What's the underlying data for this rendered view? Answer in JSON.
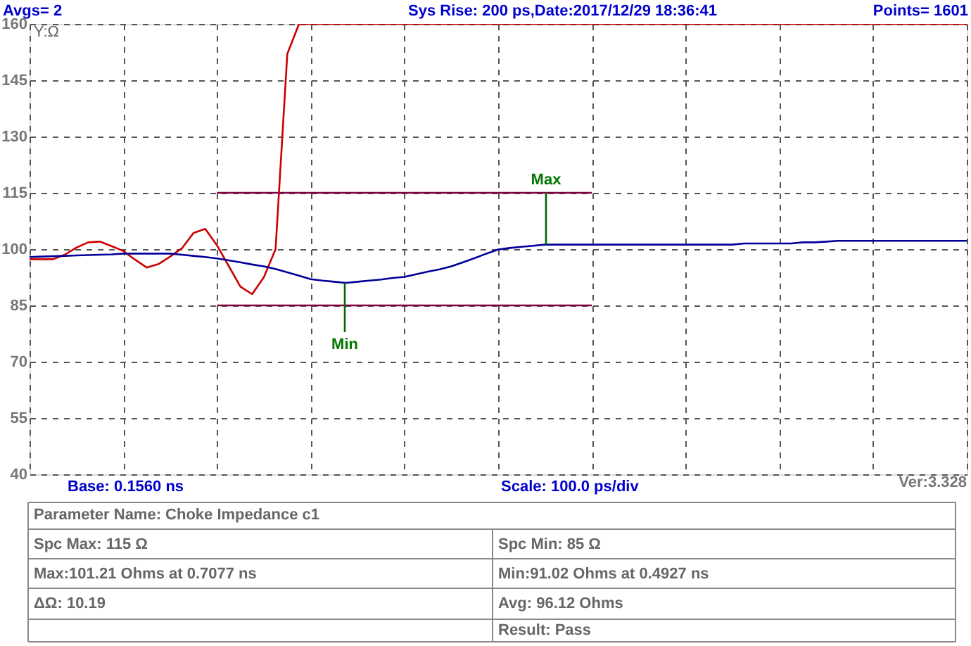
{
  "chart_data": {
    "type": "line",
    "ylabel": "Y:Ω",
    "categories": [
      null,
      null,
      null,
      null,
      null,
      null,
      null,
      null,
      null,
      null,
      null,
      null,
      null,
      null,
      null,
      null,
      null,
      null,
      null,
      null,
      null,
      null,
      null,
      null,
      null,
      null,
      null,
      null,
      null,
      null,
      null,
      null,
      null,
      null,
      null,
      null,
      null,
      null,
      null,
      null,
      null,
      null,
      null,
      null,
      null,
      null,
      null,
      null,
      null,
      null,
      null,
      null,
      null,
      null,
      null,
      null,
      null,
      null,
      null,
      null,
      null,
      null,
      null,
      null,
      null,
      null,
      null,
      null,
      null,
      null,
      null,
      null,
      null,
      null,
      null,
      null,
      null,
      null,
      null,
      null,
      null
    ],
    "ylim": [
      40,
      160
    ],
    "yticks": [
      40,
      55,
      70,
      85,
      100,
      115,
      130,
      145,
      160
    ],
    "grid": true,
    "line_style": "solid",
    "marker": "none",
    "series": [
      {
        "color": "#cc0000",
        "values": [
          97.3,
          97.3,
          97.3,
          98.5,
          100.4,
          101.8,
          102.0,
          100.8,
          99.5,
          97.2,
          95.1,
          96.0,
          98.0,
          100.2,
          104.3,
          105.4,
          101.0,
          95.5,
          90.0,
          88.0,
          92.5,
          100.0,
          152,
          160,
          160,
          160,
          160,
          160,
          160,
          160,
          160,
          160,
          160,
          160,
          160,
          160,
          160,
          160,
          160,
          160,
          160,
          160,
          160,
          160,
          160,
          160,
          160,
          160,
          160,
          160,
          160,
          160,
          160,
          160,
          160,
          160,
          160,
          160,
          160,
          160,
          160,
          160,
          160,
          160,
          160,
          160,
          160,
          160,
          160,
          160,
          160,
          160,
          160,
          160,
          160,
          160,
          160,
          160,
          160,
          160,
          160
        ]
      },
      {
        "color": "#000099",
        "values": [
          97.9,
          98.0,
          98.1,
          98.2,
          98.3,
          98.4,
          98.5,
          98.6,
          98.8,
          98.8,
          98.8,
          98.8,
          98.8,
          98.5,
          98.2,
          97.9,
          97.5,
          97.0,
          96.5,
          95.9,
          95.4,
          94.7,
          93.8,
          92.9,
          92.0,
          91.6,
          91.3,
          91.0,
          91.3,
          91.6,
          91.9,
          92.3,
          92.6,
          93.3,
          94.0,
          94.6,
          95.4,
          96.5,
          97.6,
          98.8,
          99.9,
          100.3,
          100.6,
          100.9,
          101.2,
          101.2,
          101.2,
          101.2,
          101.2,
          101.2,
          101.2,
          101.2,
          101.2,
          101.2,
          101.2,
          101.2,
          101.2,
          101.2,
          101.2,
          101.2,
          101.2,
          101.5,
          101.5,
          101.5,
          101.5,
          101.5,
          101.8,
          101.8,
          102.0,
          102.2,
          102.2,
          102.2,
          102.2,
          102.2,
          102.2,
          102.2,
          102.2,
          102.2,
          102.2,
          102.2,
          102.2
        ]
      },
      {
        "color": "#800040",
        "values": [
          null,
          null,
          null,
          null,
          null,
          null,
          null,
          null,
          null,
          null,
          null,
          null,
          null,
          null,
          null,
          null,
          115,
          115,
          115,
          115,
          115,
          115,
          115,
          115,
          115,
          115,
          115,
          115,
          115,
          115,
          115,
          115,
          115,
          115,
          115,
          115,
          115,
          115,
          115,
          115,
          115,
          115,
          115,
          115,
          115,
          115,
          115,
          115,
          115,
          null,
          null,
          null,
          null,
          null,
          null,
          null,
          null,
          null,
          null,
          null,
          null,
          null,
          null,
          null,
          null,
          null,
          null,
          null,
          null,
          null,
          null,
          null,
          null,
          null,
          null,
          null,
          null,
          null,
          null,
          null,
          null
        ]
      },
      {
        "color": "#800040",
        "values": [
          null,
          null,
          null,
          null,
          null,
          null,
          null,
          null,
          null,
          null,
          null,
          null,
          null,
          null,
          null,
          null,
          85,
          85,
          85,
          85,
          85,
          85,
          85,
          85,
          85,
          85,
          85,
          85,
          85,
          85,
          85,
          85,
          85,
          85,
          85,
          85,
          85,
          85,
          85,
          85,
          85,
          85,
          85,
          85,
          85,
          85,
          85,
          85,
          85,
          null,
          null,
          null,
          null,
          null,
          null,
          null,
          null,
          null,
          null,
          null,
          null,
          null,
          null,
          null,
          null,
          null,
          null,
          null,
          null,
          null,
          null,
          null,
          null,
          null,
          null,
          null,
          null,
          null,
          null,
          null,
          null
        ]
      }
    ],
    "annotations": [
      "Avgs= 2",
      "Sys Rise: 200 ps,Date:2017/12/29 18:36:41",
      "Points= 1601",
      "Base: 0.1560 ns",
      "Scale: 100.0 ps/div",
      "Ver:3.328",
      "Parameter Name: Choke Impedance c1",
      "Spc Max: 115 Ω",
      "Spc Min: 85 Ω",
      "Max:101.21 Ohms at 0.7077 ns",
      "Min:91.02 Ohms at 0.4927 ns",
      "ΔΩ: 10.19",
      "Avg: 96.12 Ohms",
      "Result: Pass",
      {
        "text": "Min",
        "y": 91.0
      },
      {
        "text": "Max",
        "y": 101.2
      }
    ]
  }
}
